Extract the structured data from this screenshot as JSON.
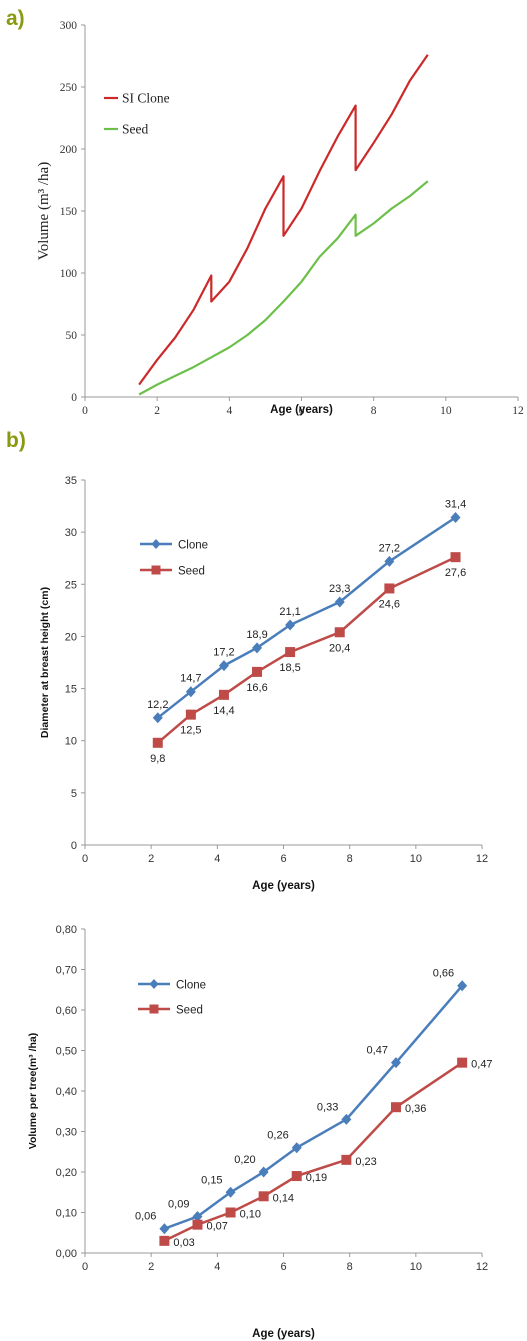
{
  "panel_labels": {
    "a": "a)",
    "b": "b)"
  },
  "colors": {
    "clone_a": "#cc2a2a",
    "seed_a": "#6cc04a",
    "clone": "#4a7ebb",
    "seed": "#be4b48",
    "axis": "#9a9a9a",
    "panel_letter": "#8a9a10"
  },
  "chart_data": [
    {
      "type": "line",
      "xlabel": "Age (years)",
      "ylabel": "Volume (m³ /ha)",
      "xlim": [
        0,
        12
      ],
      "ylim": [
        0,
        300
      ],
      "x_ticks": [
        "0",
        "2",
        "4",
        "6",
        "8",
        "10",
        "12"
      ],
      "y_ticks": [
        "0",
        "50",
        "100",
        "150",
        "200",
        "250",
        "300"
      ],
      "grid": false,
      "legend": "top-left",
      "series": [
        {
          "name": "SI Clone",
          "x": [
            1.5,
            2.0,
            2.5,
            3.0,
            3.5,
            3.5,
            4.0,
            4.5,
            5.0,
            5.5,
            5.5,
            6.0,
            6.5,
            7.0,
            7.5,
            7.5,
            8.0,
            8.5,
            9.0,
            9.5
          ],
          "y": [
            10,
            30,
            48,
            70,
            98,
            77,
            93,
            120,
            152,
            178,
            130,
            152,
            182,
            210,
            235,
            183,
            205,
            228,
            255,
            276
          ]
        },
        {
          "name": "Seed",
          "x": [
            1.5,
            2.0,
            2.5,
            3.0,
            3.5,
            4.0,
            4.5,
            5.0,
            5.5,
            6.0,
            6.5,
            7.0,
            7.5,
            7.5,
            8.0,
            8.5,
            9.0,
            9.5
          ],
          "y": [
            2,
            10,
            17,
            24,
            32,
            40,
            50,
            62,
            77,
            93,
            113,
            128,
            147,
            130,
            140,
            152,
            162,
            174
          ]
        }
      ]
    },
    {
      "type": "line",
      "xlabel": "Age (years)",
      "ylabel": "Diameter at breast height (cm)",
      "xlim": [
        0,
        12
      ],
      "ylim": [
        0,
        35
      ],
      "x_ticks": [
        "0",
        "2",
        "4",
        "6",
        "8",
        "10",
        "12"
      ],
      "y_ticks": [
        "0",
        "5",
        "10",
        "15",
        "20",
        "25",
        "30",
        "35"
      ],
      "grid": false,
      "legend": "top-left",
      "series": [
        {
          "name": "Clone",
          "x": [
            2.2,
            3.2,
            4.2,
            5.2,
            6.2,
            7.7,
            9.2,
            11.2
          ],
          "y": [
            12.2,
            14.7,
            17.2,
            18.9,
            21.1,
            23.3,
            27.2,
            31.4
          ],
          "labels": [
            "12,2",
            "14,7",
            "17,2",
            "18,9",
            "21,1",
            "23,3",
            "27,2",
            "31,4"
          ]
        },
        {
          "name": "Seed",
          "x": [
            2.2,
            3.2,
            4.2,
            5.2,
            6.2,
            7.7,
            9.2,
            11.2
          ],
          "y": [
            9.8,
            12.5,
            14.4,
            16.6,
            18.5,
            20.4,
            24.6,
            27.6
          ],
          "labels": [
            "9,8",
            "12,5",
            "14,4",
            "16,6",
            "18,5",
            "20,4",
            "24,6",
            "27,6"
          ]
        }
      ]
    },
    {
      "type": "line",
      "xlabel": "Age (years)",
      "ylabel": "Volume per tree(m³ /ha)",
      "xlim": [
        0,
        12
      ],
      "ylim": [
        0,
        0.8
      ],
      "x_ticks": [
        "0",
        "2",
        "4",
        "6",
        "8",
        "10",
        "12"
      ],
      "y_ticks": [
        "0,00",
        "0,10",
        "0,20",
        "0,30",
        "0,40",
        "0,50",
        "0,60",
        "0,70",
        "0,80"
      ],
      "grid": false,
      "legend": "top-left",
      "series": [
        {
          "name": "Clone",
          "x": [
            2.4,
            3.4,
            4.4,
            5.4,
            6.4,
            7.9,
            9.4,
            11.4
          ],
          "y": [
            0.06,
            0.09,
            0.15,
            0.2,
            0.26,
            0.33,
            0.47,
            0.66
          ],
          "labels": [
            "0,06",
            "0,09",
            "0,15",
            "0,20",
            "0,26",
            "0,33",
            "0,47",
            "0,66"
          ]
        },
        {
          "name": "Seed",
          "x": [
            2.4,
            3.4,
            4.4,
            5.4,
            6.4,
            7.9,
            9.4,
            11.4
          ],
          "y": [
            0.03,
            0.07,
            0.1,
            0.14,
            0.19,
            0.23,
            0.36,
            0.47
          ],
          "labels": [
            "0,03",
            "0,07",
            "0,10",
            "0,14",
            "0,19",
            "0,23",
            "0,36",
            "0,47"
          ]
        }
      ]
    }
  ]
}
